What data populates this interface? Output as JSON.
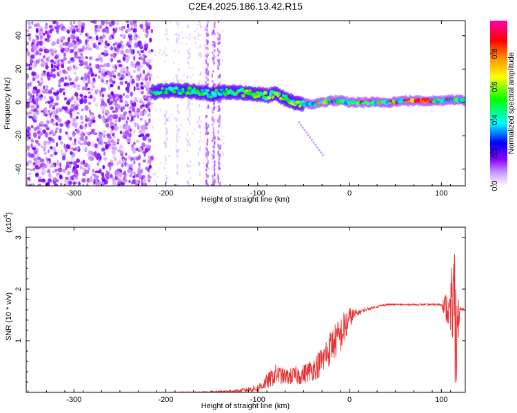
{
  "title": "C2E4.2025.186.13.42.R15",
  "chart_data": [
    {
      "type": "heatmap",
      "title": "C2E4.2025.186.13.42.R15",
      "xlabel": "Height of straight line (km)",
      "ylabel": "Frequency (Hz)",
      "xlim": [
        -352,
        126
      ],
      "ylim": [
        -50,
        49
      ],
      "x_ticks": [
        -300,
        -200,
        -100,
        0,
        100
      ],
      "y_ticks": [
        -40,
        -20,
        0,
        20,
        40
      ],
      "x_tick_labels": [
        "-300",
        "-200",
        "-100",
        "0",
        "100"
      ],
      "y_tick_labels": [
        "-40",
        "-20",
        "0",
        "20",
        "40"
      ],
      "colorbar": {
        "label": "Normalized spectral amplitude",
        "range": [
          0.0,
          1.0
        ],
        "ticks": [
          0.0,
          0.2,
          0.4,
          0.6,
          0.8
        ],
        "tick_labels": [
          "0.0",
          "0.2",
          "0.4",
          "0.6",
          "0.8"
        ],
        "colormap": [
          "#ffffff",
          "#8800ff",
          "#0000ff",
          "#00ffff",
          "#00ff00",
          "#ffff00",
          "#ff8800",
          "#ff0000",
          "#ff00aa"
        ]
      },
      "ridge": {
        "x": [
          -215,
          -200,
          -180,
          -160,
          -150,
          -140,
          -120,
          -100,
          -90,
          -80,
          -70,
          -60,
          -50,
          -40,
          -30,
          -20,
          -10,
          0,
          20,
          40,
          60,
          80,
          100,
          110,
          126
        ],
        "frequency": [
          6,
          7,
          7,
          6,
          5,
          6,
          6,
          5,
          4,
          5,
          2,
          0,
          -1,
          -1,
          0,
          1,
          1,
          0,
          0,
          0,
          1,
          1,
          1,
          2,
          1
        ]
      },
      "noise_region_x": [
        -352,
        -215
      ],
      "interference_lines_x": [
        -200,
        -187,
        -175,
        -163,
        -155,
        -148,
        -142
      ]
    },
    {
      "type": "line",
      "xlabel": "Height of straight line (km)",
      "ylabel": "SNR (10 * v/v)",
      "y_scale_label": "(x10",
      "y_scale_exponent": "4",
      "xlim": [
        -352,
        126
      ],
      "ylim": [
        0,
        3.2
      ],
      "x_ticks": [
        -300,
        -200,
        -100,
        0,
        100
      ],
      "y_ticks": [
        1,
        2,
        3
      ],
      "x_tick_labels": [
        "-300",
        "-200",
        "-100",
        "0",
        "100"
      ],
      "y_tick_labels": [
        "1",
        "2",
        "3"
      ],
      "series": [
        {
          "color": "#e83030",
          "x": [
            -352,
            -300,
            -250,
            -200,
            -150,
            -120,
            -100,
            -90,
            -80,
            -70,
            -60,
            -50,
            -40,
            -30,
            -20,
            -15,
            -10,
            -5,
            0,
            10,
            20,
            30,
            40,
            60,
            80,
            100,
            105,
            110,
            113,
            116,
            120,
            126
          ],
          "y": [
            0.0,
            0.0,
            0.0,
            0.0,
            0.01,
            0.03,
            0.08,
            0.2,
            0.35,
            0.3,
            0.32,
            0.35,
            0.45,
            0.6,
            0.9,
            1.0,
            1.1,
            1.25,
            1.45,
            1.55,
            1.62,
            1.66,
            1.7,
            1.7,
            1.7,
            1.7,
            1.65,
            1.5,
            2.0,
            1.2,
            1.6,
            1.6
          ],
          "noise_amplitude": [
            0.0,
            0.0,
            0.0,
            0.005,
            0.01,
            0.03,
            0.08,
            0.15,
            0.2,
            0.15,
            0.18,
            0.2,
            0.22,
            0.3,
            0.35,
            0.35,
            0.35,
            0.35,
            0.2,
            0.05,
            0.03,
            0.02,
            0.02,
            0.015,
            0.015,
            0.02,
            0.3,
            0.5,
            1.0,
            1.1,
            0.05,
            0.02
          ]
        }
      ]
    }
  ]
}
